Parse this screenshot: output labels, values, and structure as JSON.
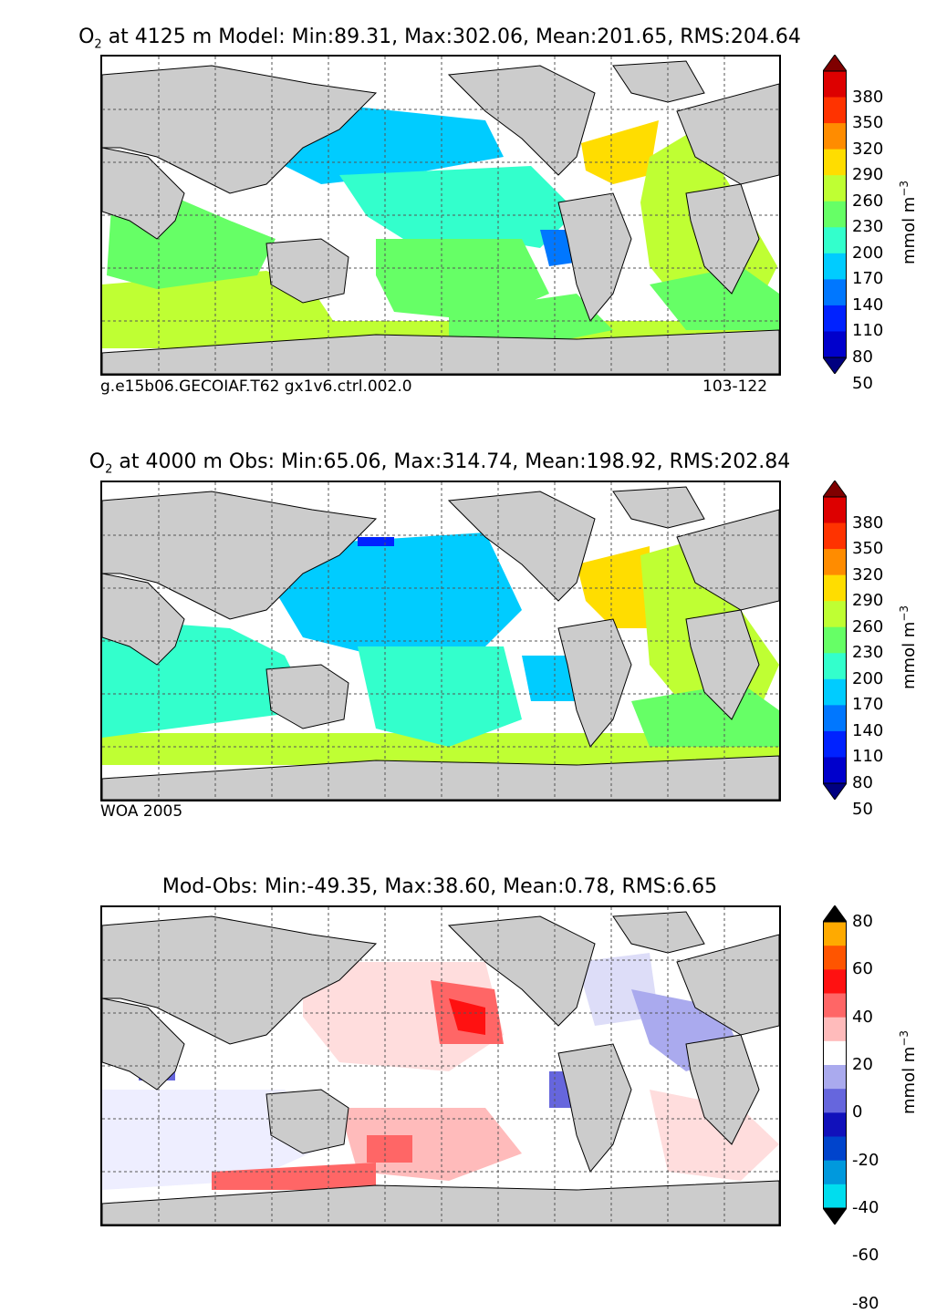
{
  "panels": [
    {
      "id": "model",
      "title_species": "O",
      "title_sub": "2",
      "title_rest": "at 4125 m Model: Min:89.31, Max:302.06, Mean:201.65, RMS:204.64",
      "caption_left": "g.e15b06.GECOIAF.T62 gx1v6.ctrl.002.0",
      "caption_right": "103-122",
      "colorbar": {
        "ticks": [
          "380",
          "350",
          "320",
          "290",
          "260",
          "230",
          "200",
          "170",
          "140",
          "110",
          "80",
          "50"
        ],
        "unit": "mmol m",
        "unit_exp": "−3",
        "colors": [
          "#7f0000",
          "#dd0000",
          "#ff3300",
          "#ff8c00",
          "#ffdd00",
          "#bfff33",
          "#66ff66",
          "#33ffcc",
          "#00ccff",
          "#0077ff",
          "#0022ff",
          "#0000cc",
          "#000080"
        ]
      }
    },
    {
      "id": "obs",
      "title_species": "O",
      "title_sub": "2",
      "title_rest": "at 4000 m Obs: Min:65.06, Max:314.74, Mean:198.92, RMS:202.84",
      "caption_left": "WOA 2005",
      "caption_right": "",
      "colorbar": {
        "ticks": [
          "380",
          "350",
          "320",
          "290",
          "260",
          "230",
          "200",
          "170",
          "140",
          "110",
          "80",
          "50"
        ],
        "unit": "mmol m",
        "unit_exp": "−3",
        "colors": [
          "#7f0000",
          "#dd0000",
          "#ff3300",
          "#ff8c00",
          "#ffdd00",
          "#bfff33",
          "#66ff66",
          "#33ffcc",
          "#00ccff",
          "#0077ff",
          "#0022ff",
          "#0000cc",
          "#000080"
        ]
      }
    },
    {
      "id": "diff",
      "title_species": "",
      "title_sub": "",
      "title_rest": "Mod-Obs: Min:-49.35, Max:38.60, Mean:0.78, RMS:6.65",
      "caption_left": "",
      "caption_right": "",
      "colorbar": {
        "ticks": [
          "80",
          "60",
          "40",
          "20",
          "0",
          "-20",
          "-40",
          "-60",
          "-80"
        ],
        "unit": "mmol m",
        "unit_exp": "−3",
        "colors": [
          "#ffff33",
          "#ffaa00",
          "#ff5500",
          "#ff1111",
          "#ff6666",
          "#ffbbbb",
          "#ffffff",
          "#aaaaee",
          "#6666dd",
          "#1111bb",
          "#0044cc",
          "#0099dd",
          "#00ddee",
          "#33ffff"
        ]
      }
    }
  ],
  "colors": {
    "land": "#cccccc",
    "ocean_blank": "#ffffff",
    "grid": "#555555"
  }
}
